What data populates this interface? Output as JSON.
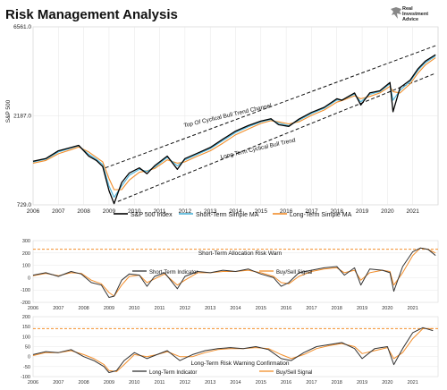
{
  "header": {
    "title": "Risk Management Analysis"
  },
  "logo": {
    "line1": "Real",
    "line2": "Investment",
    "line3": "Advice"
  },
  "chart_data": [
    {
      "type": "line",
      "ylabel": "S&P 500",
      "y_scale": "log",
      "ylim": [
        729.0,
        6561.0
      ],
      "y_ticks": [
        "6561.0",
        "2187.0",
        "729.0"
      ],
      "x_ticks": [
        "2006",
        "2007",
        "2008",
        "2009",
        "2010",
        "2011",
        "2012",
        "2013",
        "2014",
        "2015",
        "2016",
        "2017",
        "2018",
        "2019",
        "2020",
        "2021"
      ],
      "x": [
        2006.0,
        2006.5,
        2007.0,
        2007.5,
        2007.8,
        2008.2,
        2008.5,
        2008.75,
        2009.0,
        2009.2,
        2009.5,
        2009.8,
        2010.2,
        2010.5,
        2010.8,
        2011.3,
        2011.7,
        2012.0,
        2012.5,
        2013.0,
        2013.5,
        2014.0,
        2014.5,
        2015.0,
        2015.4,
        2015.7,
        2016.1,
        2016.5,
        2017.0,
        2017.5,
        2018.0,
        2018.2,
        2018.7,
        2018.95,
        2019.3,
        2019.7,
        2020.1,
        2020.22,
        2020.5,
        2020.9,
        2021.2,
        2021.5,
        2021.9
      ],
      "series": [
        {
          "name": "S&P 500 Index",
          "color": "#000000",
          "values": [
            1250,
            1290,
            1420,
            1480,
            1520,
            1330,
            1260,
            1170,
            870,
            740,
            960,
            1080,
            1150,
            1070,
            1180,
            1330,
            1130,
            1290,
            1380,
            1480,
            1640,
            1810,
            1940,
            2050,
            2110,
            1960,
            1920,
            2100,
            2280,
            2430,
            2700,
            2650,
            2900,
            2500,
            2900,
            2980,
            3300,
            2300,
            3100,
            3400,
            3900,
            4300,
            4650
          ]
        },
        {
          "name": "Short-Term Simple MA",
          "color": "#4db3d8",
          "values": [
            1240,
            1280,
            1400,
            1470,
            1510,
            1360,
            1280,
            1200,
            920,
            800,
            920,
            1050,
            1130,
            1100,
            1160,
            1310,
            1180,
            1270,
            1360,
            1460,
            1610,
            1780,
            1910,
            2030,
            2090,
            2000,
            1940,
            2070,
            2250,
            2400,
            2660,
            2660,
            2860,
            2600,
            2850,
            2950,
            3250,
            2650,
            3000,
            3350,
            3830,
            4220,
            4580
          ]
        },
        {
          "name": "Long-Term Simple MA",
          "color": "#f28e2b",
          "values": [
            1220,
            1260,
            1370,
            1440,
            1490,
            1400,
            1310,
            1240,
            1010,
            880,
            880,
            990,
            1090,
            1110,
            1140,
            1270,
            1220,
            1240,
            1330,
            1420,
            1560,
            1730,
            1860,
            1990,
            2060,
            2030,
            1980,
            2030,
            2200,
            2350,
            2590,
            2640,
            2800,
            2700,
            2780,
            2900,
            3150,
            2950,
            2900,
            3250,
            3700,
            4100,
            4480
          ]
        }
      ],
      "annotations": [
        "Top Of Cyclical Bull Trend Channel",
        "Long Term Cyclical Bull Trend"
      ],
      "legend": "bottom"
    },
    {
      "type": "line",
      "annotation": "Short-Term Allocation Risk Warn",
      "ylim": [
        -200,
        300
      ],
      "y_ticks": [
        "300",
        "200",
        "100",
        "0",
        "-100",
        "-200"
      ],
      "x_ticks": [
        "2006",
        "2007",
        "2008",
        "2009",
        "2010",
        "2011",
        "2012",
        "2013",
        "2014",
        "2015",
        "2016",
        "2017",
        "2018",
        "2019",
        "2020",
        "2021"
      ],
      "threshold": 230,
      "x": [
        2006.0,
        2006.5,
        2007.0,
        2007.5,
        2007.9,
        2008.3,
        2008.7,
        2009.0,
        2009.2,
        2009.5,
        2009.8,
        2010.2,
        2010.5,
        2010.8,
        2011.2,
        2011.7,
        2012.0,
        2012.5,
        2013.0,
        2013.5,
        2014.0,
        2014.5,
        2015.0,
        2015.5,
        2015.8,
        2016.1,
        2016.5,
        2017.0,
        2017.5,
        2018.0,
        2018.3,
        2018.7,
        2018.95,
        2019.3,
        2019.8,
        2020.1,
        2020.25,
        2020.6,
        2021.0,
        2021.3,
        2021.6,
        2021.9
      ],
      "series": [
        {
          "name": "Short-Term Indicator",
          "color": "#333333",
          "values": [
            20,
            40,
            10,
            50,
            30,
            -40,
            -60,
            -160,
            -150,
            -20,
            30,
            20,
            -70,
            10,
            40,
            -90,
            10,
            50,
            40,
            60,
            50,
            70,
            30,
            0,
            -70,
            -40,
            40,
            60,
            80,
            90,
            20,
            80,
            -60,
            70,
            60,
            40,
            -110,
            90,
            210,
            240,
            230,
            180
          ]
        },
        {
          "name": "Buy/Sell Signal",
          "color": "#f28e2b",
          "values": [
            15,
            35,
            15,
            40,
            35,
            -20,
            -50,
            -120,
            -150,
            -60,
            10,
            20,
            -40,
            -10,
            30,
            -60,
            -20,
            40,
            40,
            50,
            50,
            60,
            40,
            10,
            -40,
            -50,
            10,
            50,
            70,
            80,
            40,
            60,
            -20,
            40,
            60,
            50,
            -60,
            40,
            180,
            240,
            230,
            200
          ]
        }
      ],
      "legend": "bottom"
    },
    {
      "type": "line",
      "annotation": "Long-Term Risk Warning Confirmation",
      "ylim": [
        -100,
        200
      ],
      "y_ticks": [
        "200",
        "150",
        "100",
        "50",
        "0",
        "-50",
        "-100"
      ],
      "x_ticks": [
        "2006",
        "2007",
        "2008",
        "2009",
        "2010",
        "2011",
        "2012",
        "2013",
        "2014",
        "2015",
        "2016",
        "2017",
        "2018",
        "2019",
        "2020",
        "2021"
      ],
      "threshold": 140,
      "x": [
        2006.0,
        2006.5,
        2007.0,
        2007.5,
        2008.0,
        2008.4,
        2008.8,
        2009.0,
        2009.3,
        2009.6,
        2010.0,
        2010.5,
        2010.9,
        2011.3,
        2011.8,
        2012.3,
        2012.8,
        2013.3,
        2013.8,
        2014.3,
        2014.8,
        2015.3,
        2015.8,
        2016.2,
        2016.7,
        2017.2,
        2017.7,
        2018.2,
        2018.7,
        2019.0,
        2019.5,
        2020.0,
        2020.25,
        2020.6,
        2021.0,
        2021.4,
        2021.8
      ],
      "series": [
        {
          "name": "Long-Term Indicator",
          "color": "#333333",
          "values": [
            10,
            25,
            20,
            35,
            0,
            -20,
            -50,
            -80,
            -70,
            -20,
            20,
            -10,
            10,
            30,
            -20,
            10,
            30,
            40,
            45,
            40,
            50,
            35,
            -10,
            -20,
            20,
            50,
            60,
            70,
            40,
            -10,
            40,
            50,
            -40,
            40,
            120,
            145,
            130
          ]
        },
        {
          "name": "Buy/Sell Signal",
          "color": "#f28e2b",
          "values": [
            5,
            20,
            20,
            30,
            10,
            -10,
            -40,
            -70,
            -75,
            -40,
            10,
            0,
            10,
            25,
            0,
            0,
            20,
            35,
            40,
            40,
            45,
            40,
            10,
            -10,
            10,
            40,
            55,
            65,
            50,
            15,
            30,
            45,
            -10,
            20,
            90,
            140,
            140
          ]
        }
      ],
      "legend": "bottom"
    }
  ]
}
